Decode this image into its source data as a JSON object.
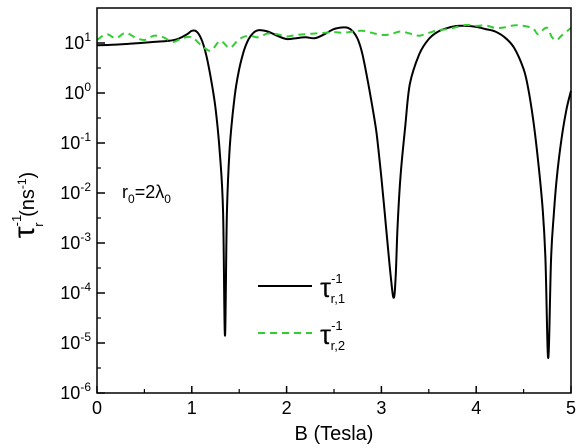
{
  "chart_data": {
    "type": "line",
    "title": "",
    "xlabel": "B (Tesla)",
    "ylabel": {
      "base": "τ",
      "sup": "-1",
      "sub": "r",
      "unit_open": " (ns",
      "unit_sup": "-1",
      "unit_close": ")"
    },
    "xlim": [
      0,
      5
    ],
    "ylim": [
      1e-06,
      50
    ],
    "yscale": "log",
    "grid": false,
    "legend_position": "bottom-center",
    "x_ticks": [
      "0",
      "1",
      "2",
      "3",
      "4",
      "5"
    ],
    "y_ticks": [
      {
        "base": "10",
        "exp": "1"
      },
      {
        "base": "10",
        "exp": "0"
      },
      {
        "base": "10",
        "exp": "-1"
      },
      {
        "base": "10",
        "exp": "-2"
      },
      {
        "base": "10",
        "exp": "-3"
      },
      {
        "base": "10",
        "exp": "-4"
      },
      {
        "base": "10",
        "exp": "-5"
      },
      {
        "base": "10",
        "exp": "-6"
      }
    ],
    "annotation": {
      "r": "r",
      "r_sub": "0",
      "eq": "=2λ",
      "lam_sub": "0"
    },
    "series": [
      {
        "legend": {
          "base": "τ",
          "sup": "-1",
          "sub": "r,1"
        },
        "color": "#000000",
        "dash": "solid",
        "x": [
          0.0,
          0.2,
          0.4,
          0.6,
          0.75,
          0.85,
          0.95,
          1.0,
          1.05,
          1.1,
          1.15,
          1.2,
          1.25,
          1.3,
          1.33,
          1.35,
          1.37,
          1.4,
          1.45,
          1.5,
          1.55,
          1.6,
          1.65,
          1.7,
          1.8,
          1.9,
          2.0,
          2.1,
          2.2,
          2.3,
          2.4,
          2.5,
          2.6,
          2.65,
          2.7,
          2.75,
          2.8,
          2.85,
          2.9,
          2.95,
          3.0,
          3.05,
          3.1,
          3.13,
          3.15,
          3.17,
          3.2,
          3.25,
          3.3,
          3.4,
          3.5,
          3.6,
          3.7,
          3.8,
          3.9,
          4.0,
          4.1,
          4.2,
          4.3,
          4.4,
          4.5,
          4.55,
          4.6,
          4.65,
          4.7,
          4.73,
          4.76,
          4.79,
          4.82,
          4.85,
          4.9,
          4.95,
          5.0
        ],
        "y": [
          9.0,
          9.3,
          9.8,
          10.5,
          11.0,
          12.0,
          15.0,
          17.5,
          17.0,
          12.0,
          6.0,
          2.0,
          0.5,
          0.05,
          0.004,
          1.4e-05,
          0.004,
          0.08,
          0.8,
          3.0,
          7.0,
          12.0,
          16.0,
          18.0,
          17.0,
          14.0,
          12.0,
          12.5,
          13.0,
          12.5,
          15.0,
          19.0,
          20.5,
          20.0,
          17.0,
          12.0,
          6.0,
          2.0,
          0.6,
          0.15,
          0.02,
          0.002,
          0.0002,
          8e-05,
          0.0002,
          0.002,
          0.02,
          0.2,
          1.5,
          6.0,
          12.0,
          17.0,
          20.0,
          22.0,
          22.0,
          21.0,
          19.0,
          17.0,
          13.0,
          8.0,
          3.0,
          1.2,
          0.3,
          0.05,
          0.005,
          0.0005,
          5e-06,
          0.0005,
          0.004,
          0.02,
          0.12,
          0.45,
          1.1
        ]
      },
      {
        "legend": {
          "base": "τ",
          "sup": "-1",
          "sub": "r,2"
        },
        "color": "#33cc33",
        "dash": "dashed",
        "x": [
          0.0,
          0.1,
          0.2,
          0.3,
          0.4,
          0.5,
          0.6,
          0.7,
          0.8,
          0.9,
          1.0,
          1.1,
          1.2,
          1.3,
          1.4,
          1.5,
          1.6,
          1.7,
          1.8,
          1.9,
          2.0,
          2.1,
          2.2,
          2.3,
          2.4,
          2.5,
          2.6,
          2.7,
          2.8,
          2.9,
          3.0,
          3.1,
          3.2,
          3.3,
          3.4,
          3.5,
          3.6,
          3.7,
          3.8,
          3.9,
          4.0,
          4.1,
          4.2,
          4.3,
          4.4,
          4.5,
          4.6,
          4.65,
          4.7,
          4.75,
          4.8,
          4.85,
          4.9,
          5.0
        ],
        "y": [
          11.5,
          15.0,
          12.5,
          16.0,
          13.0,
          11.5,
          14.0,
          13.0,
          10.5,
          12.5,
          13.0,
          9.0,
          7.0,
          11.0,
          8.0,
          12.0,
          14.0,
          13.0,
          15.5,
          15.0,
          13.5,
          14.5,
          15.0,
          15.5,
          16.0,
          16.5,
          16.0,
          17.0,
          17.5,
          16.0,
          14.5,
          15.0,
          17.0,
          15.5,
          14.0,
          16.0,
          18.0,
          19.0,
          21.0,
          23.0,
          22.0,
          22.5,
          20.0,
          20.5,
          22.5,
          22.0,
          19.5,
          15.0,
          18.0,
          20.0,
          13.0,
          11.5,
          14.0,
          20.0
        ]
      }
    ]
  }
}
